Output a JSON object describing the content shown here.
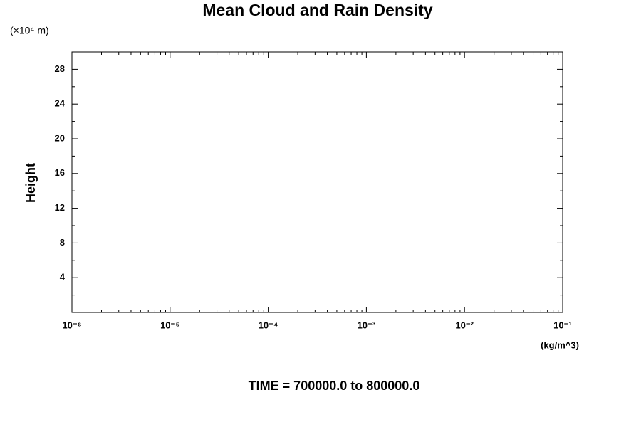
{
  "chart_data": {
    "type": "line",
    "title": "Mean Cloud and Rain Density",
    "y_unit_label": "(×10⁴ m)",
    "ylabel": "Height",
    "xlabel": "(kg/m^3)",
    "annotation": "TIME = 700000.0 to 800000.0",
    "x_scale": "log",
    "xlim": [
      1e-06,
      0.1
    ],
    "xticks": [
      {
        "value": 1e-06,
        "label": "10⁻⁶"
      },
      {
        "value": 1e-05,
        "label": "10⁻⁵"
      },
      {
        "value": 0.0001,
        "label": "10⁻⁴"
      },
      {
        "value": 0.001,
        "label": "10⁻³"
      },
      {
        "value": 0.01,
        "label": "10⁻²"
      },
      {
        "value": 0.1,
        "label": "10⁻¹"
      }
    ],
    "ylim": [
      0,
      30
    ],
    "yticks": [
      4,
      8,
      12,
      16,
      20,
      24,
      28
    ],
    "series": []
  }
}
